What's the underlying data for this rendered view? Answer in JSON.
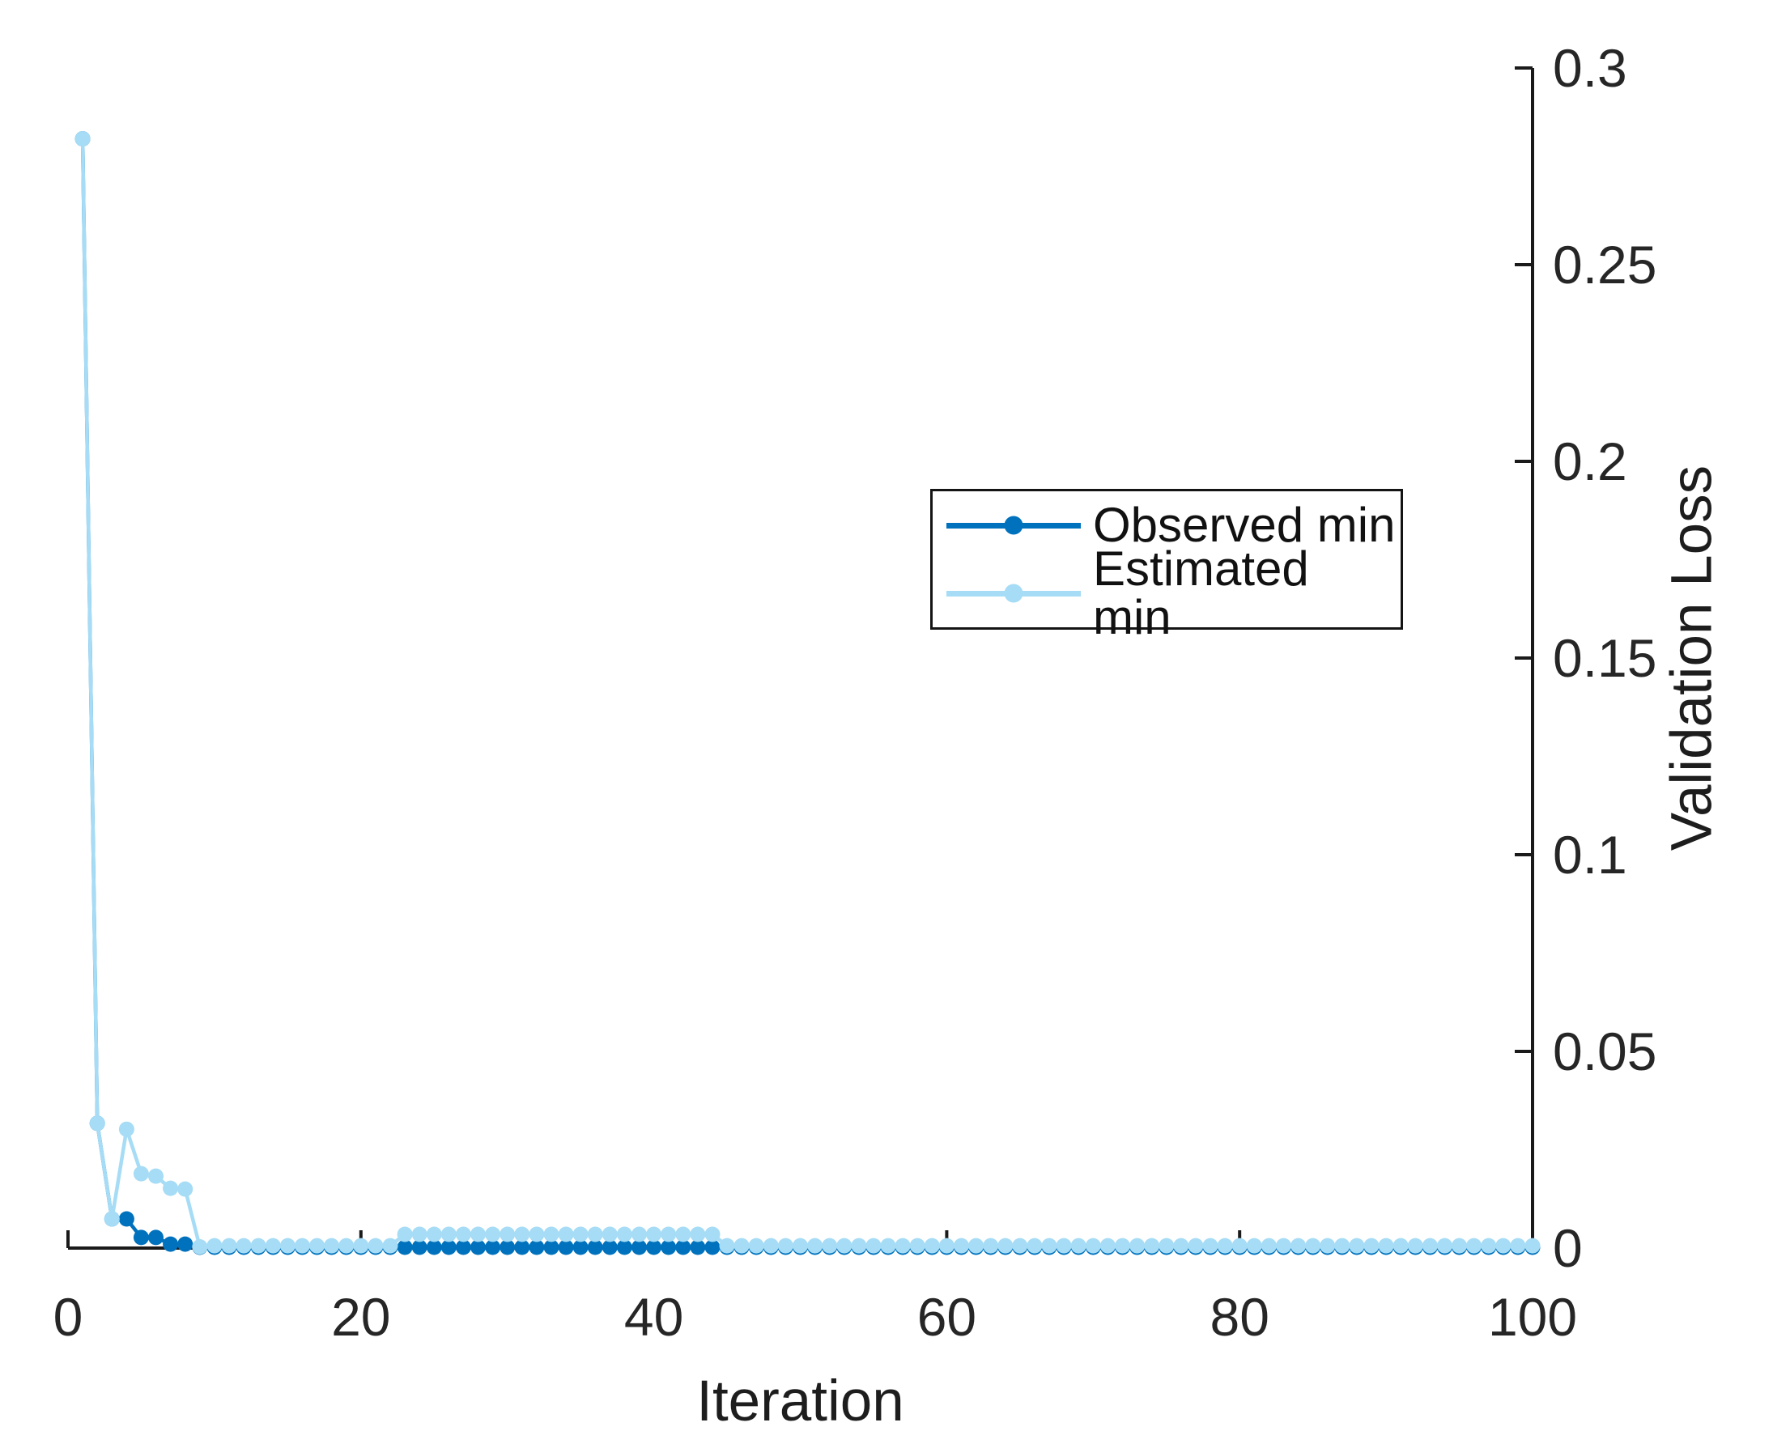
{
  "figure": {
    "background": "#ffffff",
    "axis_color": "#1a1a1a",
    "tick_label_color": "#262626"
  },
  "axes": {
    "x_label": "Iteration",
    "y_label": "Validation Loss"
  },
  "legend": {
    "position": "upper-center",
    "items": [
      {
        "label": "Observed min",
        "color": "#0072BD"
      },
      {
        "label": "Estimated min",
        "color": "#A6DCF5"
      }
    ]
  },
  "chart_data": {
    "type": "line",
    "title": "",
    "xlabel": "Iteration",
    "ylabel": "Validation Loss",
    "xlim": [
      0,
      100
    ],
    "ylim": [
      0,
      0.3
    ],
    "grid": false,
    "legend_position": "upper-center",
    "x_ticks": [
      0,
      20,
      40,
      60,
      80,
      100
    ],
    "y_ticks": [
      0,
      0.05,
      0.1,
      0.15,
      0.2,
      0.25,
      0.3
    ],
    "y_tick_labels": [
      "0",
      "0.05",
      "0.1",
      "0.15",
      "0.2",
      "0.25",
      "0.3"
    ],
    "x": [
      1,
      2,
      3,
      4,
      5,
      6,
      7,
      8,
      9,
      10,
      11,
      12,
      13,
      14,
      15,
      16,
      17,
      18,
      19,
      20,
      21,
      22,
      23,
      24,
      25,
      26,
      27,
      28,
      29,
      30,
      31,
      32,
      33,
      34,
      35,
      36,
      37,
      38,
      39,
      40,
      41,
      42,
      43,
      44,
      45,
      46,
      47,
      48,
      49,
      50,
      51,
      52,
      53,
      54,
      55,
      56,
      57,
      58,
      59,
      60,
      61,
      62,
      63,
      64,
      65,
      66,
      67,
      68,
      69,
      70,
      71,
      72,
      73,
      74,
      75,
      76,
      77,
      78,
      79,
      80,
      81,
      82,
      83,
      84,
      85,
      86,
      87,
      88,
      89,
      90,
      91,
      92,
      93,
      94,
      95,
      96,
      97,
      98,
      99,
      100
    ],
    "series": [
      {
        "name": "Observed min",
        "color": "#0072BD",
        "marker": "filled-circle",
        "values": [
          0.282,
          0.0317,
          0.0074,
          0.0074,
          0.0027,
          0.0027,
          0.001,
          0.001,
          0.0002,
          0.0002,
          0.0002,
          0.0002,
          0.0002,
          0.0002,
          0.0002,
          0.0002,
          0.0002,
          0.0002,
          0.0002,
          0.0002,
          0.0002,
          0.0002,
          0.0002,
          0.0002,
          0.0002,
          0.0002,
          0.0002,
          0.0002,
          0.0002,
          0.0002,
          0.0002,
          0.0002,
          0.0002,
          0.0002,
          0.0002,
          0.0002,
          0.0002,
          0.0002,
          0.0002,
          0.0002,
          0.0002,
          0.0002,
          0.0002,
          0.0002,
          0.0002,
          0.0002,
          0.0002,
          0.0002,
          0.0002,
          0.0002,
          0.0002,
          0.0002,
          0.0002,
          0.0002,
          0.0002,
          0.0002,
          0.0002,
          0.0002,
          0.0002,
          0.0002,
          0.0002,
          0.0002,
          0.0002,
          0.0002,
          0.0002,
          0.0002,
          0.0002,
          0.0002,
          0.0002,
          0.0002,
          0.0002,
          0.0002,
          0.0002,
          0.0002,
          0.0002,
          0.0002,
          0.0002,
          0.0002,
          0.0002,
          0.0002,
          0.0002,
          0.0002,
          0.0002,
          0.0002,
          0.0002,
          0.0002,
          0.0002,
          0.0002,
          0.0002,
          0.0002,
          0.0002,
          0.0002,
          0.0002,
          0.0002,
          0.0002,
          0.0002,
          0.0002,
          0.0002,
          0.0002,
          0.0002
        ]
      },
      {
        "name": "Estimated min",
        "color": "#A6DCF5",
        "marker": "filled-circle",
        "values": [
          0.282,
          0.0317,
          0.0074,
          0.0302,
          0.0189,
          0.0183,
          0.0152,
          0.015,
          0.0003,
          0.0006,
          0.0006,
          0.0006,
          0.0006,
          0.0006,
          0.0006,
          0.0006,
          0.0006,
          0.0006,
          0.0006,
          0.0006,
          0.0006,
          0.0006,
          0.0035,
          0.0035,
          0.0035,
          0.0035,
          0.0035,
          0.0035,
          0.0035,
          0.0035,
          0.0035,
          0.0035,
          0.0035,
          0.0035,
          0.0035,
          0.0035,
          0.0035,
          0.0035,
          0.0035,
          0.0035,
          0.0035,
          0.0035,
          0.0035,
          0.0035,
          0.0006,
          0.0006,
          0.0006,
          0.0006,
          0.0006,
          0.0006,
          0.0006,
          0.0006,
          0.0006,
          0.0006,
          0.0006,
          0.0006,
          0.0006,
          0.0006,
          0.0006,
          0.0006,
          0.0006,
          0.0006,
          0.0006,
          0.0006,
          0.0006,
          0.0006,
          0.0006,
          0.0006,
          0.0006,
          0.0006,
          0.0006,
          0.0006,
          0.0006,
          0.0006,
          0.0006,
          0.0006,
          0.0006,
          0.0006,
          0.0006,
          0.0006,
          0.0006,
          0.0006,
          0.0006,
          0.0006,
          0.0006,
          0.0006,
          0.0006,
          0.0006,
          0.0006,
          0.0006,
          0.0006,
          0.0006,
          0.0006,
          0.0006,
          0.0006,
          0.0006,
          0.0006,
          0.0006,
          0.0006,
          0.0006
        ]
      }
    ]
  }
}
